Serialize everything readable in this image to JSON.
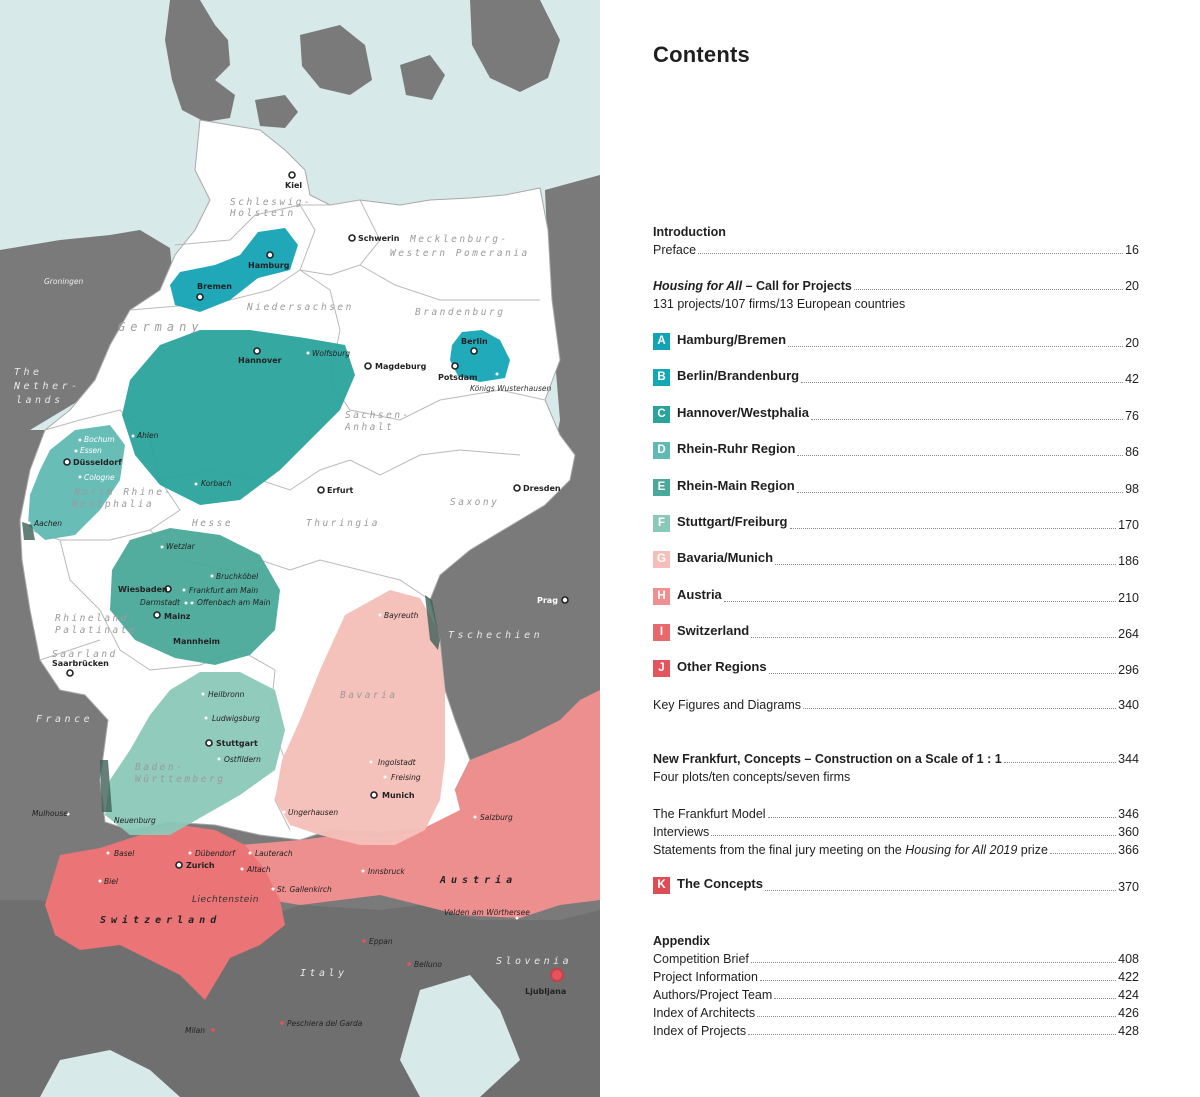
{
  "colors": {
    "sea": "#d8e9ea",
    "neighbors": "#7a7a7a",
    "land": "#ffffff",
    "border": "#9a9a9a",
    "A": "#14a3b4",
    "B": "#15a7b6",
    "C": "#2aa39d",
    "D": "#61b9b3",
    "E": "#4aa99a",
    "F": "#8bc8b7",
    "G": "#f5bfb9",
    "H": "#ef8f8f",
    "I": "#e8696c",
    "J": "#e4545c",
    "K": "#dd4d56"
  },
  "map": {
    "region_labels": {
      "schleswig": [
        "Schleswig-",
        "Holstein"
      ],
      "mecklenburg": [
        "Mecklenburg-",
        "Western Pomerania"
      ],
      "niedersachsen": "Niedersachsen",
      "brandenburg": "Brandenburg",
      "germany": "Germany",
      "sachsen_anhalt": [
        "Sachsen-",
        "Anhalt"
      ],
      "nrw": [
        "North Rhine-",
        "Westphalia"
      ],
      "saxony": "Saxony",
      "hesse": "Hesse",
      "thuringia": "Thuringia",
      "rhineland": [
        "Rhineland-",
        "Palatinate"
      ],
      "saarland": "Saarland",
      "bavaria": "Bavaria",
      "baden": [
        "Baden-",
        "Württemberg"
      ],
      "netherlands": [
        "The",
        "Nether-",
        "lands"
      ],
      "france": "France",
      "tschechien": "Tschechien",
      "austria": "Austria",
      "switzerland": "Switzerland",
      "italy": "Italy",
      "slovenia": "Slovenia",
      "liechtenstein": "Liechtenstein"
    },
    "cities": {
      "kiel": "Kiel",
      "hamburg": "Hamburg",
      "bremen": "Bremen",
      "schwerin": "Schwerin",
      "hannover": "Hannover",
      "wolfsburg": "Wolfsburg",
      "magdeburg": "Magdeburg",
      "berlin": "Berlin",
      "potsdam": "Potsdam",
      "koenigs": "Königs Wusterhausen",
      "groningen": "Groningen",
      "bochum": "Bochum",
      "essen": "Essen",
      "duesseldorf": "Düsseldorf",
      "cologne": "Cologne",
      "aachen": "Aachen",
      "ahlen": "Ahlen",
      "korbach": "Korbach",
      "erfurt": "Erfurt",
      "dresden": "Dresden",
      "wetzlar": "Wetzlar",
      "wiesbaden": "Wiesbaden",
      "bruchkoebel": "Bruchköbel",
      "frankfurt": "Frankfurt am Main",
      "darmstadt": "Darmstadt",
      "offenbach": "Offenbach am Main",
      "mainz": "Mainz",
      "mannheim": "Mannheim",
      "saarbruecken": "Saarbrücken",
      "prag": "Prag",
      "bayreuth": "Bayreuth",
      "heilbronn": "Heilbronn",
      "ludwigsburg": "Ludwigsburg",
      "stuttgart": "Stuttgart",
      "ostfildern": "Ostfildern",
      "ingolstadt": "Ingolstadt",
      "freising": "Freising",
      "munich": "Munich",
      "ungerhausen": "Ungerhausen",
      "mulhouse": "Mulhouse",
      "neuenburg": "Neuenburg",
      "salzburg": "Salzburg",
      "basel": "Basel",
      "duebendorf": "Dübendorf",
      "zurich": "Zurich",
      "lauterach": "Lauterach",
      "altach": "Altach",
      "biel": "Biel",
      "st_gallenkirch": "St. Gallenkirch",
      "innsbruck": "Innsbruck",
      "velden": "Velden am Wörthersee",
      "eppan": "Eppan",
      "belluno": "Belluno",
      "ljubljana": "Ljubljana",
      "milan": "Milan",
      "peschiera": "Peschiera del Garda"
    }
  },
  "toc": {
    "title": "Contents",
    "intro": {
      "heading": "Introduction",
      "preface": "Preface",
      "preface_page": "16"
    },
    "call": {
      "title_italic": "Housing for All",
      "title_rest": " – Call for Projects",
      "page": "20",
      "sub": "131 projects/107 firms/13 European countries"
    },
    "sections": [
      {
        "letter": "A",
        "label": "Hamburg/Bremen",
        "page": "20"
      },
      {
        "letter": "B",
        "label": "Berlin/Brandenburg",
        "page": "42"
      },
      {
        "letter": "C",
        "label": "Hannover/Westphalia",
        "page": "76"
      },
      {
        "letter": "D",
        "label": "Rhein-Ruhr Region",
        "page": "86"
      },
      {
        "letter": "E",
        "label": "Rhein-Main Region",
        "page": "98"
      },
      {
        "letter": "F",
        "label": "Stuttgart/Freiburg",
        "page": "170"
      },
      {
        "letter": "G",
        "label": "Bavaria/Munich",
        "page": "186"
      },
      {
        "letter": "H",
        "label": "Austria",
        "page": "210"
      },
      {
        "letter": "I",
        "label": "Switzerland",
        "page": "264"
      },
      {
        "letter": "J",
        "label": "Other Regions",
        "page": "296"
      }
    ],
    "key_figures": {
      "label": "Key Figures and Diagrams",
      "page": "340"
    },
    "nf": {
      "title": "New Frankfurt, Concepts – Construction on a Scale of 1 : 1",
      "page": "344",
      "sub": "Four plots/ten concepts/seven firms"
    },
    "nf_items": [
      {
        "label": "The Frankfurt Model",
        "page": "346"
      },
      {
        "label": "Interviews",
        "page": "360"
      }
    ],
    "statements": {
      "pre": "Statements from the final jury meeting on the ",
      "italic": "Housing for All 2019",
      "post": " prize",
      "page": "366"
    },
    "concepts": {
      "letter": "K",
      "label": "The Concepts",
      "page": "370"
    },
    "appendix": {
      "heading": "Appendix",
      "items": [
        {
          "label": "Competition Brief",
          "page": "408"
        },
        {
          "label": "Project Information",
          "page": "422"
        },
        {
          "label": "Authors/Project Team",
          "page": "424"
        },
        {
          "label": "Index of Architects",
          "page": "426"
        },
        {
          "label": "Index of Projects",
          "page": "428"
        }
      ]
    }
  }
}
